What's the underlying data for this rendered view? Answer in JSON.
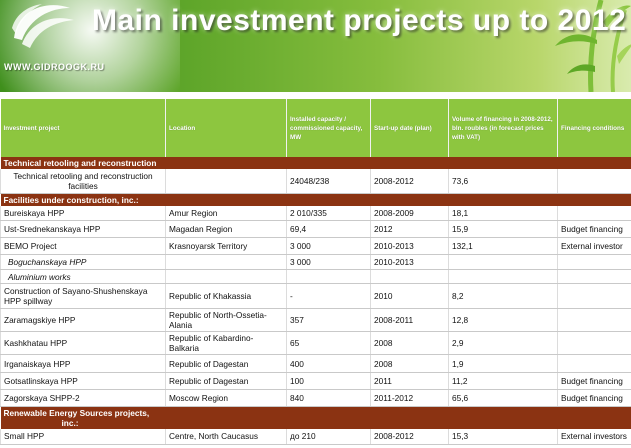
{
  "banner": {
    "title": "Main investment projects up to 2012",
    "site": "WWW.GIDROOGK.RU"
  },
  "table": {
    "headers": [
      "Investment project",
      "Location",
      "Installed capacity / commissioned capacity, MW",
      "Start-up date (plan)",
      "Volume of financing in 2008-2012, bln. roubles (in forecast prices with VAT)",
      "Financing conditions"
    ],
    "sections": {
      "s1": "Technical retooling and reconstruction",
      "s2": "Facilities under construction, inc.:",
      "s3a": "Renewable Energy Sources projects,",
      "s3b": "inc.:"
    },
    "rows": {
      "r1": {
        "project": "Technical retooling and reconstruction facilities",
        "location": "",
        "capacity": "24048/238",
        "start": "2008-2012",
        "volume": "73,6",
        "cond": ""
      },
      "r2": {
        "project": "Bureiskaya HPP",
        "location": "Amur Region",
        "capacity": "2 010/335",
        "start": "2008-2009",
        "volume": "18,1",
        "cond": ""
      },
      "r3": {
        "project": "Ust-Srednekanskaya HPP",
        "location": "Magadan Region",
        "capacity": "69,4",
        "start": "2012",
        "volume": "15,9",
        "cond": "Budget financing"
      },
      "r4": {
        "project": "BEMO Project",
        "location": "Krasnoyarsk Territory",
        "capacity": "3 000",
        "start": "2010-2013",
        "volume": "132,1",
        "cond": "External investor"
      },
      "r5": {
        "project": "Boguchanskaya HPP",
        "location": "",
        "capacity": "3 000",
        "start": "2010-2013",
        "volume": "",
        "cond": ""
      },
      "r6": {
        "project": "Aluminium works",
        "location": "",
        "capacity": "",
        "start": "",
        "volume": "",
        "cond": ""
      },
      "r7": {
        "project": "Construction of Sayano-Shushenskaya HPP spillway",
        "location": "Republic of Khakassia",
        "capacity": "-",
        "start": "2010",
        "volume": "8,2",
        "cond": ""
      },
      "r8": {
        "project": "Zaramagskiye HPP",
        "location": "Republic of North-Ossetia-Alania",
        "capacity": "357",
        "start": "2008-2011",
        "volume": "12,8",
        "cond": ""
      },
      "r9": {
        "project": "Kashkhatau HPP",
        "location": "Republic of Kabardino-Balkaria",
        "capacity": "65",
        "start": "2008",
        "volume": "2,9",
        "cond": ""
      },
      "r10": {
        "project": "Irganaiskaya HPP",
        "location": "Republic of Dagestan",
        "capacity": "400",
        "start": "2008",
        "volume": "1,9",
        "cond": ""
      },
      "r11": {
        "project": "Gotsatlinskaya HPP",
        "location": "Republic of Dagestan",
        "capacity": "100",
        "start": "2011",
        "volume": "11,2",
        "cond": "Budget financing"
      },
      "r12": {
        "project": "Zagorskaya SHPP-2",
        "location": "Moscow Region",
        "capacity": "840",
        "start": "2011-2012",
        "volume": "65,6",
        "cond": "Budget financing"
      },
      "r13": {
        "project": "Small HPP",
        "location": "Centre, North Caucasus",
        "capacity": "до 210",
        "start": "2008-2012",
        "volume": "15,3",
        "cond": "External investors"
      }
    }
  },
  "colors": {
    "banner_green": "#5fa62a",
    "header_green": "#8dc63f",
    "section_brown": "#8b3312"
  },
  "icons": {
    "logo": "leaf-swirl-logo",
    "decoration": "bamboo-sprouts-decoration"
  }
}
